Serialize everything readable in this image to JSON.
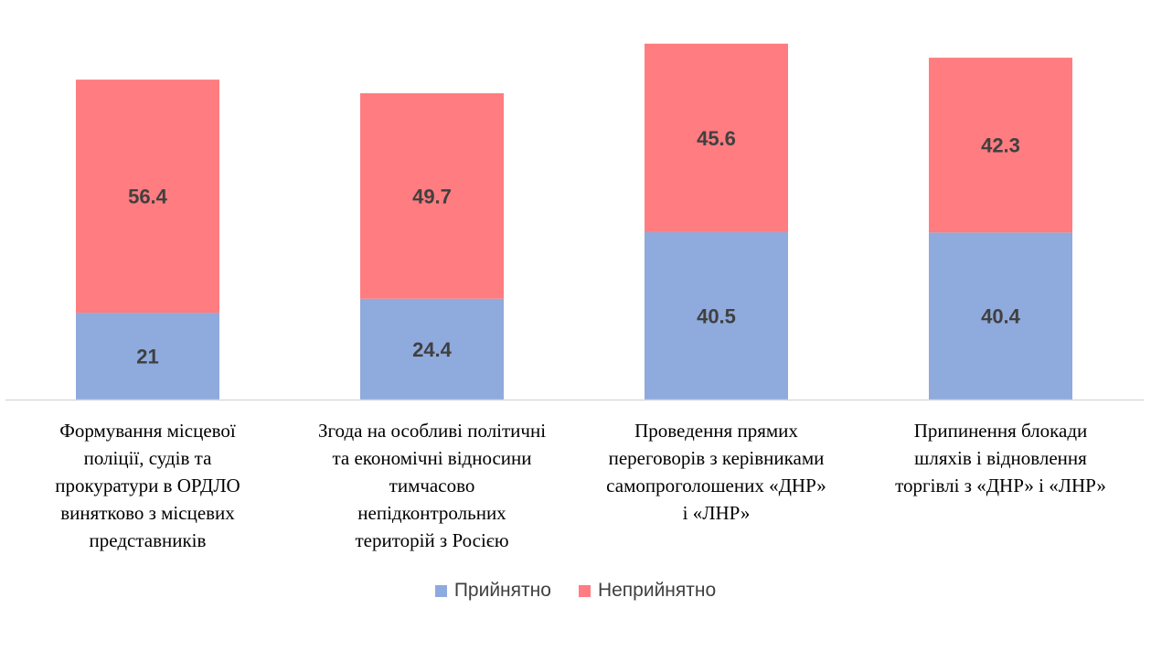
{
  "chart_data": {
    "type": "bar",
    "stacked": true,
    "categories": [
      "Формування місцевої\nполіції, судів та\nпрокуратури в ОРДЛО\nвинятково з місцевих\nпредставників",
      "Згода на особливі політичні\nта економічні відносини\nтимчасово\nнепідконтрольних\nтериторій з Росією",
      "Проведення прямих\nпереговорів з керівниками\nсамопроголошених «ДНР»\nі «ЛНР»",
      "Припинення блокади\nшляхів і відновлення\nторгівлі з «ДНР» і «ЛНР»"
    ],
    "series": [
      {
        "name": "Прийнятно",
        "values": [
          21,
          24.4,
          40.5,
          40.4
        ],
        "color": "#8FAADC"
      },
      {
        "name": "Неприйнятно",
        "values": [
          56.4,
          49.7,
          45.6,
          42.3
        ],
        "color": "#FF7C80"
      }
    ],
    "ylim": [
      0,
      96
    ],
    "grid": false,
    "legend": "bottom",
    "data_labels": true
  }
}
